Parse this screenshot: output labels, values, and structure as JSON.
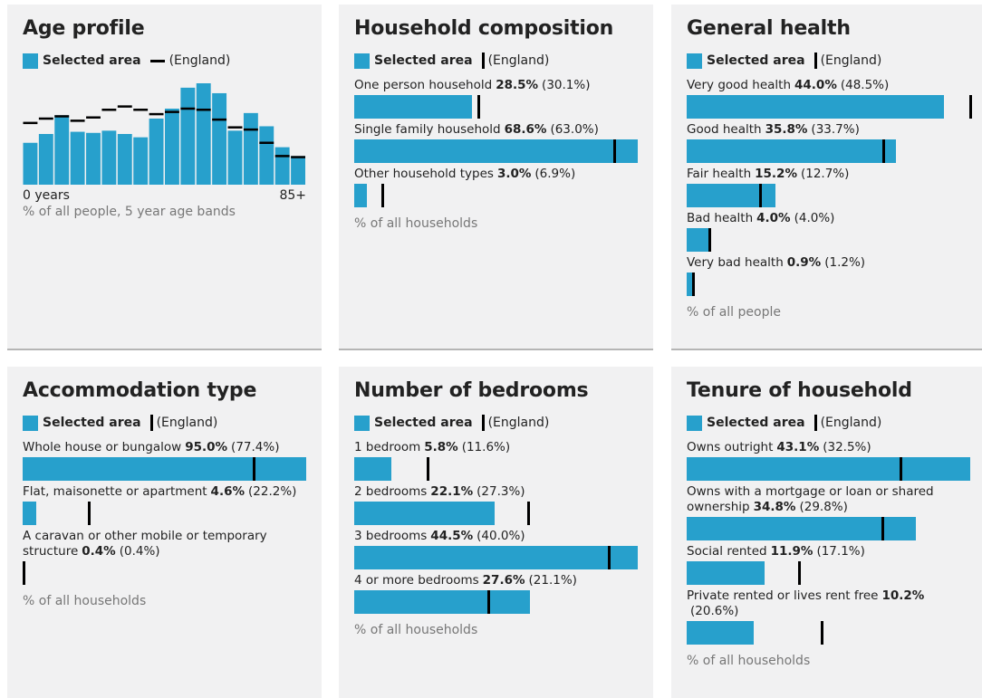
{
  "chart_data": [
    {
      "type": "column",
      "title": "Age profile",
      "note": "% of all people, 5 year age bands",
      "categories": [
        "0 years",
        null,
        null,
        null,
        null,
        null,
        null,
        null,
        null,
        null,
        null,
        null,
        null,
        null,
        null,
        null,
        null,
        "85+"
      ],
      "series": [
        {
          "name": "Selected area",
          "color": "#27a0cc",
          "values": [
            3.8,
            4.6,
            6.3,
            4.8,
            4.7,
            4.9,
            4.6,
            4.3,
            6.0,
            6.9,
            8.8,
            9.2,
            8.3,
            4.9,
            6.5,
            5.3,
            3.4,
            2.6
          ]
        },
        {
          "name": "(England)",
          "color": "#000000",
          "values": [
            5.6,
            6.0,
            6.2,
            5.8,
            6.1,
            6.8,
            7.1,
            6.8,
            6.4,
            6.6,
            6.9,
            6.8,
            5.9,
            5.2,
            5.0,
            3.8,
            2.6,
            2.5
          ]
        }
      ]
    },
    {
      "type": "bar",
      "title": "Household composition",
      "note": "% of all households",
      "categories": [
        "One person household",
        "Single family household",
        "Other household types"
      ],
      "series": [
        {
          "name": "Selected area",
          "color": "#27a0cc",
          "values": [
            28.5,
            68.6,
            3.0
          ],
          "value_labels": [
            "28.5%",
            "68.6%",
            "3.0%"
          ]
        },
        {
          "name": "(England)",
          "color": "#000000",
          "values": [
            30.1,
            63.0,
            6.9
          ],
          "value_labels": [
            "(30.1%)",
            "(63.0%)",
            "(6.9%)"
          ]
        }
      ]
    },
    {
      "type": "bar",
      "title": "General health",
      "note": "% of all people",
      "categories": [
        "Very good health",
        "Good health",
        "Fair health",
        "Bad health",
        "Very bad health"
      ],
      "series": [
        {
          "name": "Selected area",
          "color": "#27a0cc",
          "values": [
            44.0,
            35.8,
            15.2,
            4.0,
            0.9
          ],
          "value_labels": [
            "44.0%",
            "35.8%",
            "15.2%",
            "4.0%",
            "0.9%"
          ]
        },
        {
          "name": "(England)",
          "color": "#000000",
          "values": [
            48.5,
            33.7,
            12.7,
            4.0,
            1.2
          ],
          "value_labels": [
            "(48.5%)",
            "(33.7%)",
            "(12.7%)",
            "(4.0%)",
            "(1.2%)"
          ]
        }
      ]
    },
    {
      "type": "bar",
      "title": "Accommodation type",
      "note": "% of all households",
      "categories": [
        "Whole house or bungalow",
        "Flat, maisonette or apartment",
        "A caravan or other mobile or temporary structure"
      ],
      "series": [
        {
          "name": "Selected area",
          "color": "#27a0cc",
          "values": [
            95.0,
            4.6,
            0.4
          ],
          "value_labels": [
            "95.0%",
            "4.6%",
            "0.4%"
          ]
        },
        {
          "name": "(England)",
          "color": "#000000",
          "values": [
            77.4,
            22.2,
            0.4
          ],
          "value_labels": [
            "(77.4%)",
            "(22.2%)",
            "(0.4%)"
          ]
        }
      ]
    },
    {
      "type": "bar",
      "title": "Number of bedrooms",
      "note": "% of all households",
      "categories": [
        "1 bedroom",
        "2 bedrooms",
        "3 bedrooms",
        "4 or more bedrooms"
      ],
      "series": [
        {
          "name": "Selected area",
          "color": "#27a0cc",
          "values": [
            5.8,
            22.1,
            44.5,
            27.6
          ],
          "value_labels": [
            "5.8%",
            "22.1%",
            "44.5%",
            "27.6%"
          ]
        },
        {
          "name": "(England)",
          "color": "#000000",
          "values": [
            11.6,
            27.3,
            40.0,
            21.1
          ],
          "value_labels": [
            "(11.6%)",
            "(27.3%)",
            "(40.0%)",
            "(21.1%)"
          ]
        }
      ]
    },
    {
      "type": "bar",
      "title": "Tenure of household",
      "note": "% of all households",
      "categories": [
        "Owns outright",
        "Owns with a mortgage or loan or shared ownership",
        "Social rented",
        "Private rented or lives rent free"
      ],
      "series": [
        {
          "name": "Selected area",
          "color": "#27a0cc",
          "values": [
            43.1,
            34.8,
            11.9,
            10.2
          ],
          "value_labels": [
            "43.1%",
            "34.8%",
            "11.9%",
            "10.2%"
          ]
        },
        {
          "name": "(England)",
          "color": "#000000",
          "values": [
            32.5,
            29.8,
            17.1,
            20.6
          ],
          "value_labels": [
            "(32.5%)",
            "(29.8%)",
            "(17.1%)",
            "(20.6%)"
          ]
        }
      ]
    }
  ]
}
